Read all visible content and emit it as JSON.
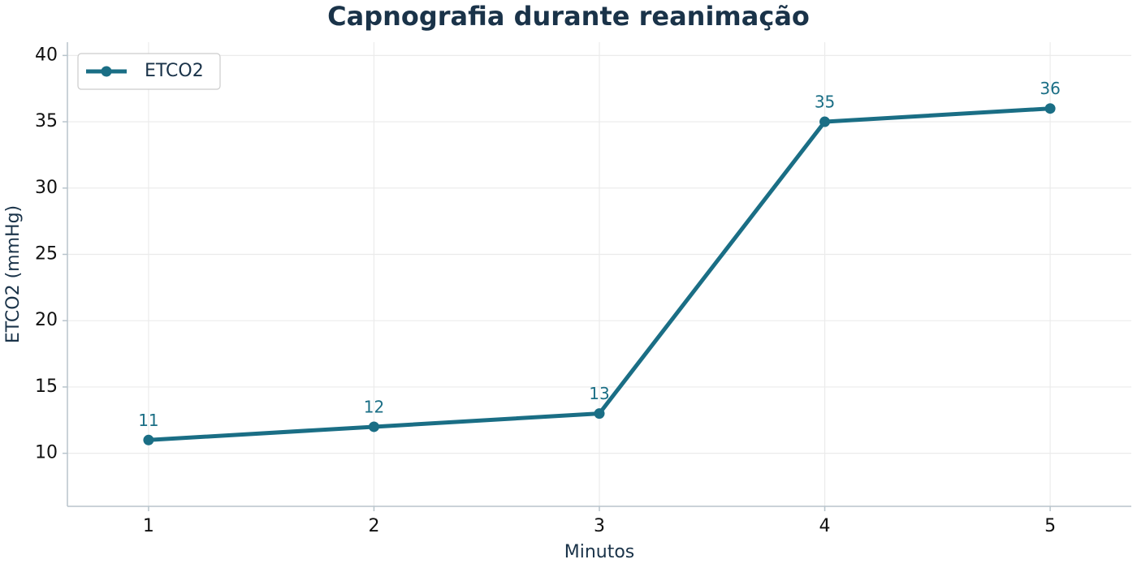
{
  "chart_data": {
    "type": "line",
    "title": "Capnografia durante reanimação",
    "xlabel": "Minutos",
    "ylabel": "ETCO2 (mmHg)",
    "x": [
      1,
      2,
      3,
      4,
      5
    ],
    "series": [
      {
        "name": "ETCO2",
        "color": "#1a6e85",
        "values": [
          11,
          12,
          13,
          35,
          36
        ]
      }
    ],
    "xlim": [
      0.64,
      5.36
    ],
    "xticks": [
      1,
      2,
      3,
      4,
      5
    ],
    "ylim": [
      6,
      41
    ],
    "yticks": [
      10,
      15,
      20,
      25,
      30,
      35,
      40
    ],
    "grid": true,
    "legend": "upper-left"
  }
}
